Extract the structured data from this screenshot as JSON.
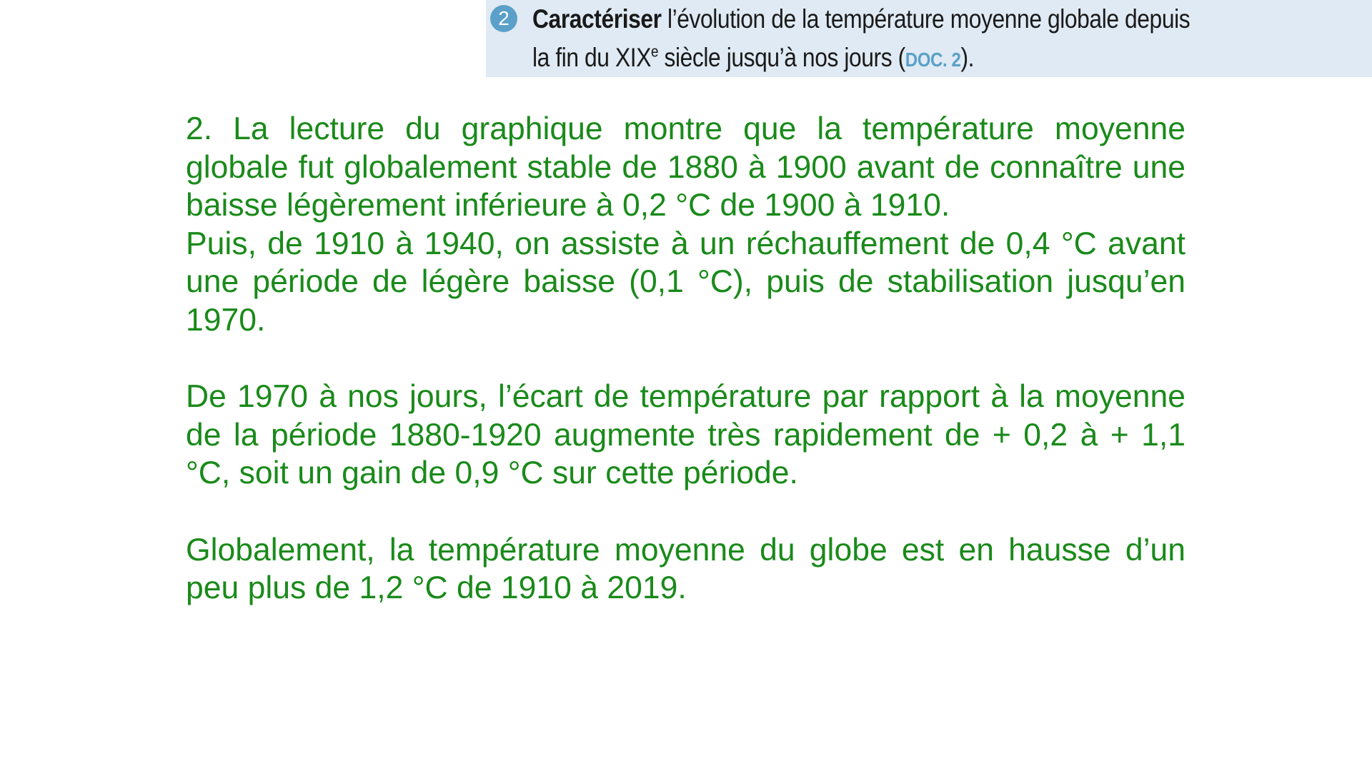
{
  "question": {
    "number": "2",
    "verb": "Caractériser",
    "line1_rest": " l’évolution de la température moyenne globale depuis",
    "line2_pre": "la fin du ",
    "century": "XIX",
    "century_sup": "e",
    "line2_mid": " siècle jusqu’à nos jours (",
    "doc_ref": "DOC. 2",
    "line2_end": ")."
  },
  "answer": {
    "p1": "2. La lecture du graphique montre que la température moyenne globale fut globalement stable de 1880 à 1900 avant de connaître une baisse légèrement inférieure à 0,2 °C de 1900 à 1910.",
    "p2": "Puis, de 1910 à 1940, on assiste à un réchauffement de 0,4 °C avant une période de légère baisse (0,1 °C), puis de stabilisation jusqu’en 1970.",
    "p3": "De 1970 à nos jours, l’écart de température par rapport à la moyenne de la période 1880-1920 augmente très rapidement de + 0,2 à + 1,1 °C, soit un gain de 0,9 °C sur cette période.",
    "p4": "Globalement, la température moyenne du globe est en hausse d’un peu plus de 1,2 °C de 1910 à 2019."
  },
  "colors": {
    "answer_text": "#1a8a1a",
    "question_bg": "#dfeaf4",
    "accent": "#5aa0c8"
  }
}
